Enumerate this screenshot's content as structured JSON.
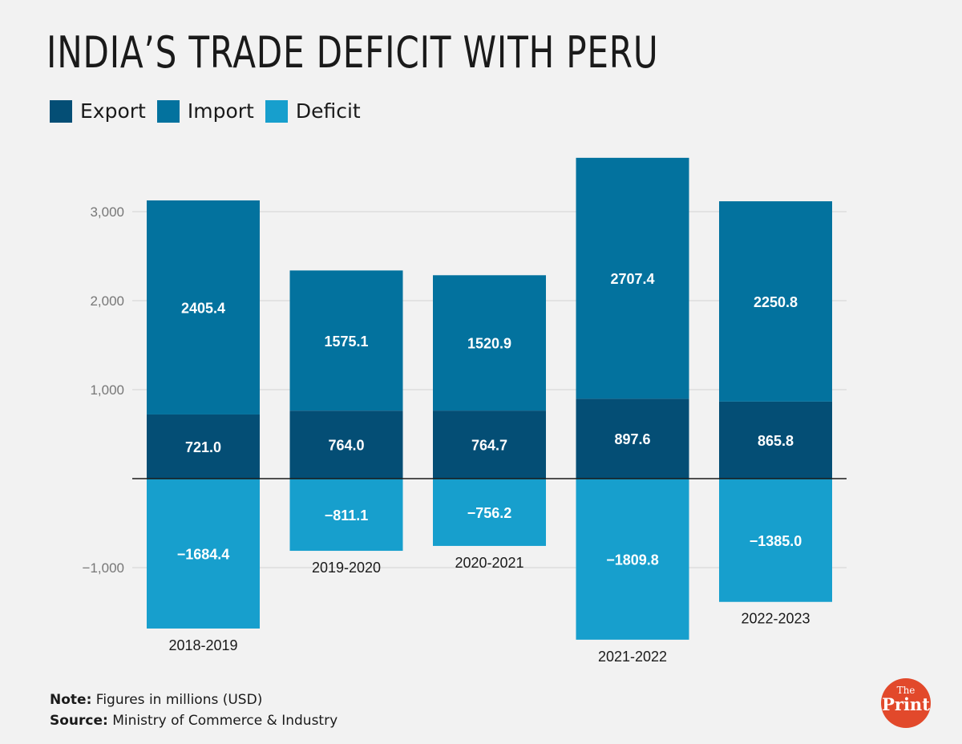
{
  "title": "INDIA’S TRADE DEFICIT WITH PERU",
  "colors": {
    "export": "#044e75",
    "import": "#03729e",
    "deficit": "#179fcd"
  },
  "legend": [
    {
      "name": "Export",
      "color": "#044e75"
    },
    {
      "name": "Import",
      "color": "#03729e"
    },
    {
      "name": "Deficit",
      "color": "#179fcd"
    }
  ],
  "chart_data": {
    "type": "bar",
    "stacked": true,
    "categories": [
      "2018-2019",
      "2019-2020",
      "2020-2021",
      "2021-2022",
      "2022-2023"
    ],
    "series": [
      {
        "name": "Export",
        "values": [
          721.0,
          764.0,
          764.7,
          897.6,
          865.8
        ],
        "labels": [
          "721.0",
          "764.0",
          "764.7",
          "897.6",
          "865.8"
        ]
      },
      {
        "name": "Import",
        "values": [
          2405.4,
          1575.1,
          1520.9,
          2707.4,
          2250.8
        ],
        "labels": [
          "2405.4",
          "1575.1",
          "1520.9",
          "2707.4",
          "2250.8"
        ]
      },
      {
        "name": "Deficit",
        "values": [
          -1684.4,
          -811.1,
          -756.2,
          -1809.8,
          -1385.0
        ],
        "labels": [
          "−1684.4",
          "−811.1",
          "−756.2",
          "−1809.8",
          "−1385.0"
        ]
      }
    ],
    "yticks": [
      3000,
      2000,
      1000,
      -1000
    ],
    "ytick_labels": [
      "3,000",
      "2,000",
      "1,000",
      "−1,000"
    ],
    "ylim": [
      -1809.8,
      3605.0
    ],
    "grid": true
  },
  "footer": {
    "note_label": "Note:",
    "note_text": " Figures in millions (USD)",
    "source_label": "Source:",
    "source_text": " Ministry of Commerce & Industry"
  },
  "logo": {
    "the": "The",
    "print": "Print"
  }
}
